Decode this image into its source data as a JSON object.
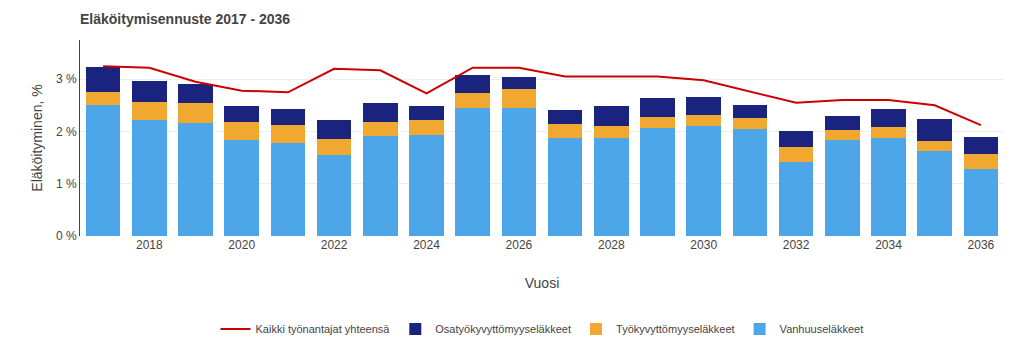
{
  "chart_data": {
    "type": "bar",
    "title": "Eläköitymisennuste 2017 - 2036",
    "x_label": "Vuosi",
    "y_label": "Eläköityminen, %",
    "categories": [
      null,
      "2018",
      null,
      "2020",
      null,
      "2022",
      null,
      "2024",
      null,
      "2026",
      null,
      "2028",
      null,
      "2030",
      null,
      "2032",
      null,
      "2034",
      null,
      "2036"
    ],
    "series": [
      {
        "name": "Vanhuuseläkkeet",
        "type": "bar",
        "color": "#4da6e8",
        "values": [
          2.5,
          2.22,
          2.16,
          1.84,
          1.78,
          1.55,
          1.91,
          1.94,
          2.44,
          2.44,
          1.87,
          1.88,
          2.07,
          2.1,
          2.05,
          1.42,
          1.84,
          1.88,
          1.63,
          1.28
        ]
      },
      {
        "name": "Työkyvyttömyyseläkkeet",
        "type": "bar",
        "color": "#f0a830",
        "values": [
          0.25,
          0.35,
          0.38,
          0.35,
          0.35,
          0.3,
          0.28,
          0.28,
          0.3,
          0.38,
          0.28,
          0.22,
          0.2,
          0.22,
          0.2,
          0.28,
          0.18,
          0.2,
          0.18,
          0.28
        ]
      },
      {
        "name": "Osatyökyvyttömyyseläkkeet",
        "type": "bar",
        "color": "#1a237e",
        "values": [
          0.48,
          0.4,
          0.36,
          0.3,
          0.3,
          0.37,
          0.35,
          0.27,
          0.35,
          0.22,
          0.27,
          0.38,
          0.37,
          0.33,
          0.26,
          0.3,
          0.28,
          0.35,
          0.42,
          0.33
        ]
      },
      {
        "name": "Kaikki työnantajat yhteensä",
        "type": "line",
        "color": "#cc0000",
        "values": [
          3.25,
          3.22,
          2.95,
          2.78,
          2.75,
          3.2,
          3.17,
          2.73,
          3.22,
          3.22,
          3.05,
          3.05,
          3.05,
          2.98,
          2.77,
          2.55,
          2.6,
          2.6,
          2.5,
          2.12
        ]
      }
    ],
    "stacked": true,
    "ylim": [
      0,
      3.75
    ],
    "yticks": [
      {
        "value": 0,
        "label": "0 %"
      },
      {
        "value": 1,
        "label": "1 %"
      },
      {
        "value": 2,
        "label": "2 %"
      },
      {
        "value": 3,
        "label": "3 %"
      }
    ],
    "grid": true,
    "legend": "bottom"
  }
}
